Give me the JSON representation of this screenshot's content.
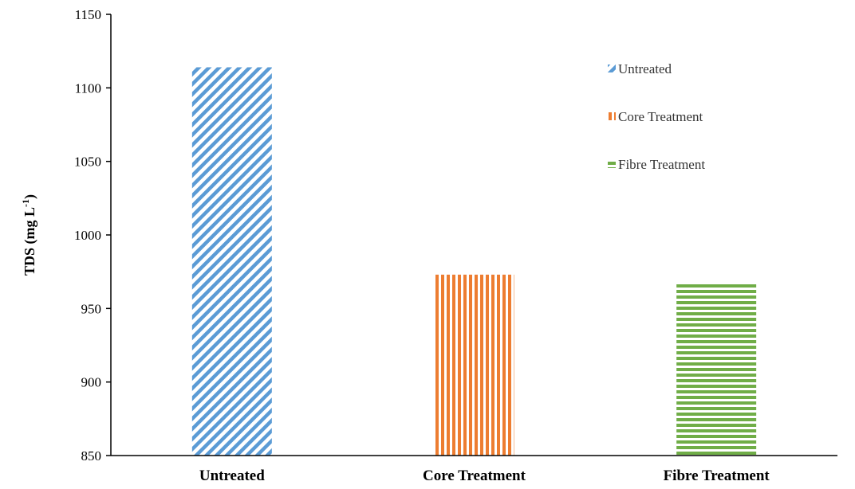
{
  "chart_data": {
    "type": "bar",
    "title": "",
    "xlabel": "",
    "ylabel": "TDS (mg L",
    "ylabel_sup": "-1",
    "ylabel_close": ")",
    "ylim": [
      850,
      1150
    ],
    "yticks": [
      850,
      900,
      950,
      1000,
      1050,
      1100,
      1150
    ],
    "categories": [
      "Untreated",
      "Core Treatment",
      "Fibre Treatment"
    ],
    "values": [
      1114,
      973,
      967
    ],
    "legend": [
      "Untreated",
      "Core Treatment",
      "Fibre Treatment"
    ],
    "legend_position": "top-right",
    "grid": false,
    "colors": [
      "#5b9bd5",
      "#ed7d31",
      "#70ad47"
    ],
    "patterns": [
      "diagonal-stripes",
      "vertical-stripes",
      "horizontal-stripes"
    ]
  }
}
